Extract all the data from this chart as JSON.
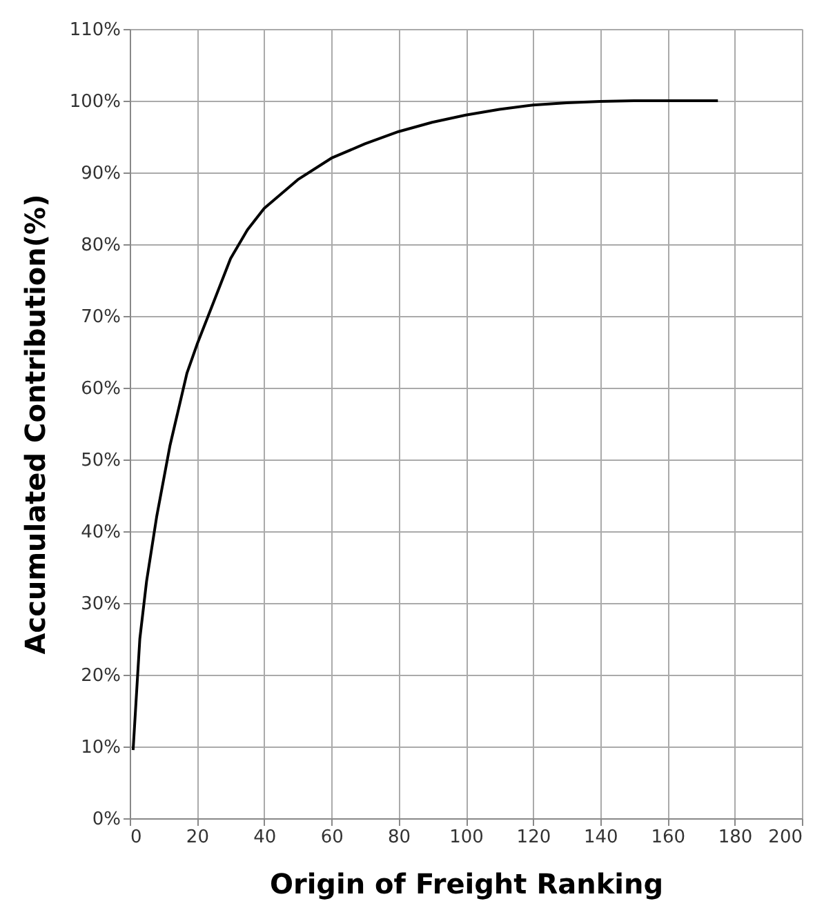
{
  "chart_data": {
    "type": "line",
    "xlabel": "Origin of Freight Ranking",
    "ylabel": "Accumulated Contribution(%)",
    "x": [
      1,
      3,
      5,
      8,
      12,
      17,
      20,
      25,
      30,
      35,
      40,
      50,
      60,
      70,
      80,
      90,
      100,
      110,
      120,
      130,
      140,
      150,
      175
    ],
    "series": [
      {
        "color": "#000000",
        "values": [
          9.5,
          25,
          33,
          42,
          52,
          62,
          66,
          72,
          78,
          82,
          85,
          89,
          92,
          94,
          95.7,
          97,
          98,
          98.8,
          99.4,
          99.7,
          99.9,
          100,
          100
        ]
      }
    ],
    "xlim": [
      0,
      200
    ],
    "xticks": [
      0,
      20,
      40,
      60,
      80,
      100,
      120,
      140,
      160,
      180,
      200
    ],
    "ylim": [
      0,
      110
    ],
    "yticks": [
      {
        "value": 0,
        "label": "0%"
      },
      {
        "value": 10,
        "label": "10%"
      },
      {
        "value": 20,
        "label": "20%"
      },
      {
        "value": 30,
        "label": "30%"
      },
      {
        "value": 40,
        "label": "40%"
      },
      {
        "value": 50,
        "label": "50%"
      },
      {
        "value": 60,
        "label": "60%"
      },
      {
        "value": 70,
        "label": "70%"
      },
      {
        "value": 80,
        "label": "80%"
      },
      {
        "value": 90,
        "label": "90%"
      },
      {
        "value": 100,
        "label": "100%"
      },
      {
        "value": 110,
        "label": "110%"
      }
    ],
    "grid": true,
    "marker": "none",
    "line_style": "solid"
  }
}
